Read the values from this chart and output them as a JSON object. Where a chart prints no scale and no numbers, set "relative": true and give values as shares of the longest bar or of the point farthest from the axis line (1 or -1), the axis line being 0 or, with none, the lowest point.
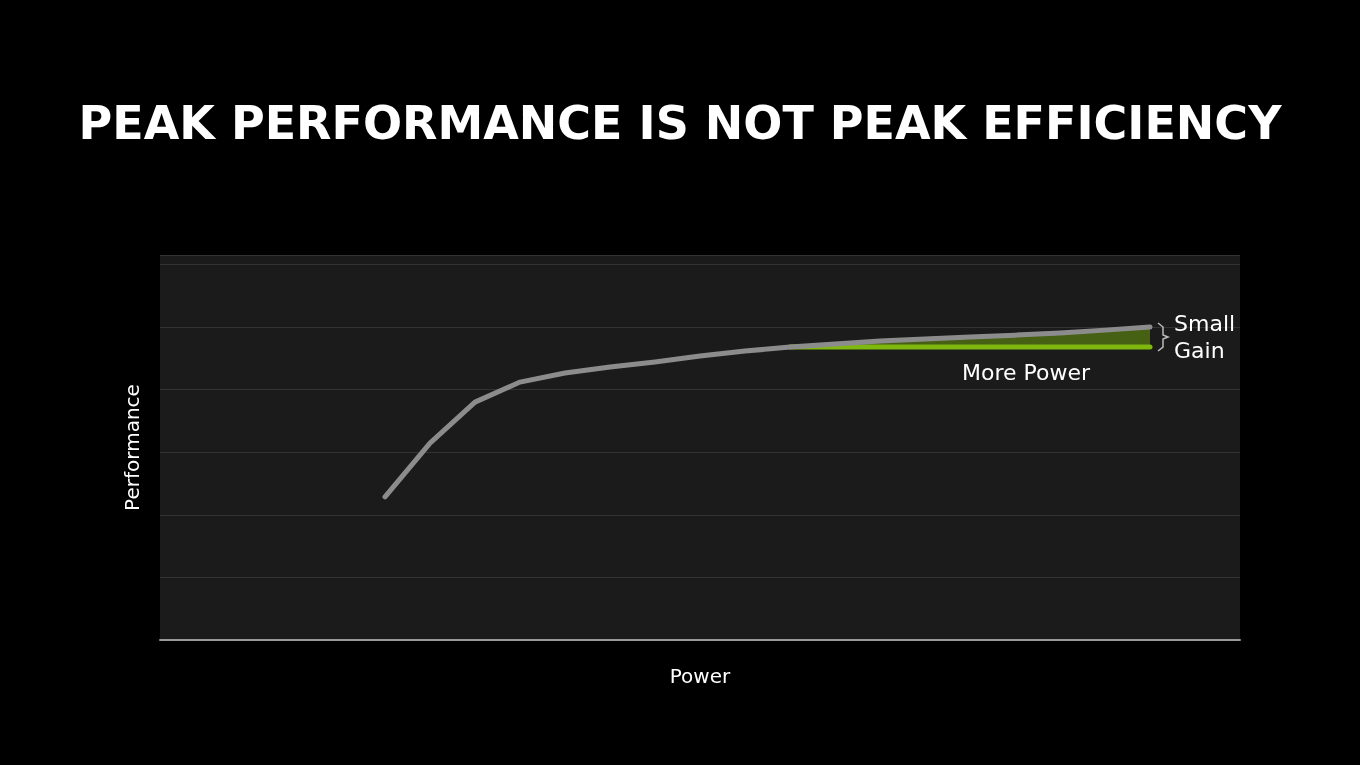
{
  "chart_data": {
    "type": "line",
    "title": "PEAK PERFORMANCE IS NOT PEAK EFFICIENCY",
    "xlabel": "Power",
    "ylabel": "Performance",
    "relative": true,
    "grid": "y",
    "marker": "none",
    "line_style": "solid",
    "categories": [
      null,
      null,
      null,
      null,
      null,
      null,
      null,
      null,
      null,
      null,
      null,
      null,
      null,
      null,
      null,
      null,
      null,
      null,
      null,
      null,
      null,
      null,
      null,
      null,
      null
    ],
    "series": [
      {
        "color": "#7fb80e",
        "values": [
          null,
          null,
          null,
          null,
          null,
          null,
          null,
          null,
          null,
          null,
          null,
          null,
          null,
          null,
          0.936,
          0.936,
          0.936,
          0.936,
          0.936,
          0.936,
          0.936,
          0.936,
          0.936,
          null,
          null
        ],
        "lower": [
          null,
          null,
          null,
          null,
          null,
          null,
          null,
          null,
          null,
          null,
          null,
          null,
          null,
          null,
          0.936,
          0.936,
          0.936,
          0.936,
          0.936,
          0.936,
          0.936,
          0.936,
          0.936,
          null,
          null
        ],
        "upper": [
          null,
          null,
          null,
          null,
          null,
          null,
          null,
          null,
          null,
          null,
          null,
          null,
          null,
          null,
          0.936,
          0.946,
          0.955,
          0.962,
          0.968,
          0.974,
          0.981,
          0.99,
          1,
          null,
          null
        ]
      },
      {
        "color": "#8c8c8c",
        "values": [
          null,
          null,
          null,
          null,
          null,
          0.457,
          0.629,
          0.76,
          0.824,
          0.853,
          0.872,
          0.888,
          0.907,
          0.923,
          0.936,
          0.946,
          0.955,
          0.962,
          0.968,
          0.974,
          0.981,
          0.99,
          1,
          null,
          null
        ]
      }
    ],
    "annotations": [
      "Small Gain",
      "More Power"
    ]
  }
}
